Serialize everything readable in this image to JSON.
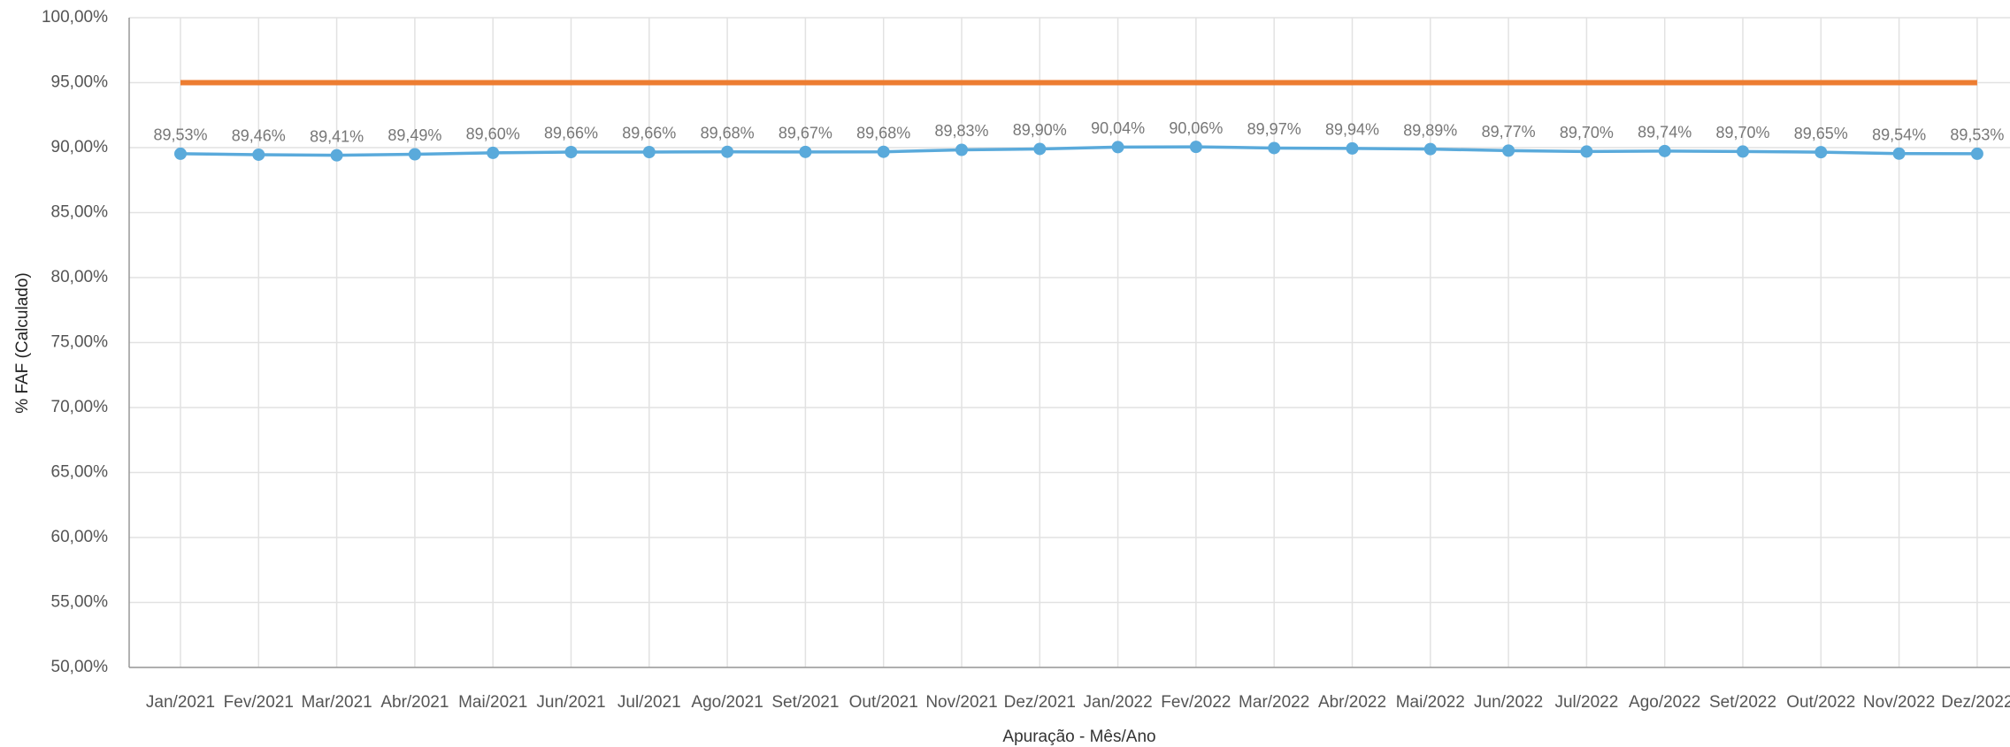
{
  "chart_data": {
    "type": "line",
    "y_label": "% FAF (Calculado)",
    "x_label": "Apuração - Mês/Ano",
    "categories": [
      "Jan/2021",
      "Fev/2021",
      "Mar/2021",
      "Abr/2021",
      "Mai/2021",
      "Jun/2021",
      "Jul/2021",
      "Ago/2021",
      "Set/2021",
      "Out/2021",
      "Nov/2021",
      "Dez/2021",
      "Jan/2022",
      "Fev/2022",
      "Mar/2022",
      "Abr/2022",
      "Mai/2022",
      "Jun/2022",
      "Jul/2022",
      "Ago/2022",
      "Set/2022",
      "Out/2022",
      "Nov/2022",
      "Dez/2022"
    ],
    "series": [
      {
        "color": "#5aaadb",
        "values": [
          89.53,
          89.46,
          89.41,
          89.49,
          89.6,
          89.66,
          89.66,
          89.68,
          89.67,
          89.68,
          89.83,
          89.9,
          90.04,
          90.06,
          89.97,
          89.94,
          89.89,
          89.77,
          89.7,
          89.74,
          89.7,
          89.65,
          89.54,
          89.53
        ],
        "value_labels": [
          "89,53%",
          "89,46%",
          "89,41%",
          "89,49%",
          "89,60%",
          "89,66%",
          "89,66%",
          "89,68%",
          "89,67%",
          "89,68%",
          "89,83%",
          "89,90%",
          "90,04%",
          "90,06%",
          "89,97%",
          "89,94%",
          "89,89%",
          "89,77%",
          "89,70%",
          "89,74%",
          "89,70%",
          "89,65%",
          "89,54%",
          "89,53%"
        ]
      },
      {
        "color": "#ed7d31",
        "values": [
          95,
          95,
          95,
          95,
          95,
          95,
          95,
          95,
          95,
          95,
          95,
          95,
          95,
          95,
          95,
          95,
          95,
          95,
          95,
          95,
          95,
          95,
          95,
          95
        ]
      }
    ],
    "ylim": [
      50,
      100
    ],
    "yticks": [
      {
        "value": 50,
        "label": "50,00%"
      },
      {
        "value": 55,
        "label": "55,00%"
      },
      {
        "value": 60,
        "label": "60,00%"
      },
      {
        "value": 65,
        "label": "65,00%"
      },
      {
        "value": 70,
        "label": "70,00%"
      },
      {
        "value": 75,
        "label": "75,00%"
      },
      {
        "value": 80,
        "label": "80,00%"
      },
      {
        "value": 85,
        "label": "85,00%"
      },
      {
        "value": 90,
        "label": "90,00%"
      },
      {
        "value": 95,
        "label": "95,00%"
      },
      {
        "value": 100,
        "label": "100,00%"
      }
    ],
    "grid": true
  }
}
